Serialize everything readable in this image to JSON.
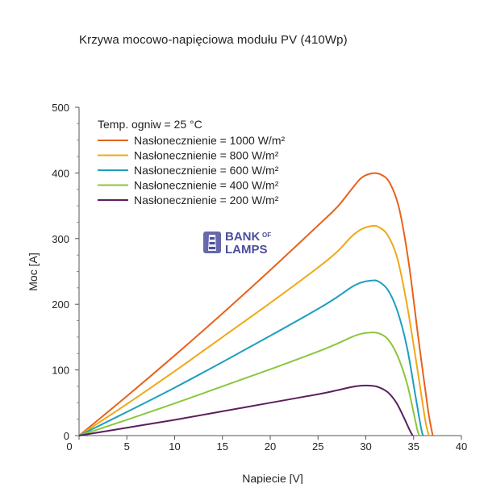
{
  "chart_data": {
    "type": "line",
    "title": "Krzywa mocowo-napięciowa modułu PV (410Wp)",
    "xlabel": "Napiecie  [V]",
    "ylabel": "Moc  [A]",
    "xlim": [
      0,
      40
    ],
    "ylim": [
      0,
      500
    ],
    "x_ticks": [
      0,
      5,
      10,
      15,
      20,
      25,
      30,
      35,
      40
    ],
    "y_ticks": [
      0,
      100,
      200,
      300,
      400,
      500
    ],
    "grid": false,
    "legend_title": "Temp. ogniw = 25 °C",
    "legend_position": "top-left",
    "series": [
      {
        "name": "Nasłonecznienie = 1000 W/m²",
        "color": "#E8621B",
        "points": [
          [
            0,
            0
          ],
          [
            5,
            60
          ],
          [
            10,
            122
          ],
          [
            15,
            186
          ],
          [
            20,
            252
          ],
          [
            25,
            320
          ],
          [
            27,
            348
          ],
          [
            28.5,
            375
          ],
          [
            29.5,
            392
          ],
          [
            30.5,
            399
          ],
          [
            31.5,
            398
          ],
          [
            32.5,
            385
          ],
          [
            33.5,
            345
          ],
          [
            34.5,
            262
          ],
          [
            35.5,
            148
          ],
          [
            36.5,
            40
          ],
          [
            37,
            0
          ]
        ]
      },
      {
        "name": "Nasłonecznienie = 800 W/m²",
        "color": "#F0A819",
        "points": [
          [
            0,
            0
          ],
          [
            5,
            48
          ],
          [
            10,
            98
          ],
          [
            15,
            150
          ],
          [
            20,
            202
          ],
          [
            25,
            256
          ],
          [
            27,
            280
          ],
          [
            28.5,
            303
          ],
          [
            29.5,
            314
          ],
          [
            30.5,
            319
          ],
          [
            31.3,
            318
          ],
          [
            32.3,
            305
          ],
          [
            33.3,
            270
          ],
          [
            34.3,
            200
          ],
          [
            35.3,
            110
          ],
          [
            36.2,
            25
          ],
          [
            36.6,
            0
          ]
        ]
      },
      {
        "name": "Nasłonecznienie = 600 W/m²",
        "color": "#1E9FBF",
        "points": [
          [
            0,
            0
          ],
          [
            5,
            36
          ],
          [
            10,
            73
          ],
          [
            15,
            112
          ],
          [
            20,
            152
          ],
          [
            25,
            193
          ],
          [
            27,
            211
          ],
          [
            28.5,
            226
          ],
          [
            29.5,
            233
          ],
          [
            30.5,
            236
          ],
          [
            31.3,
            235
          ],
          [
            32.3,
            222
          ],
          [
            33.3,
            190
          ],
          [
            34.3,
            135
          ],
          [
            35.2,
            60
          ],
          [
            35.8,
            10
          ],
          [
            36,
            0
          ]
        ]
      },
      {
        "name": "Nasłonecznienie = 400 W/m²",
        "color": "#8CC63E",
        "points": [
          [
            0,
            0
          ],
          [
            5,
            24
          ],
          [
            10,
            49
          ],
          [
            15,
            75
          ],
          [
            20,
            101
          ],
          [
            25,
            128
          ],
          [
            27,
            140
          ],
          [
            28.5,
            150
          ],
          [
            29.5,
            155
          ],
          [
            30.5,
            157
          ],
          [
            31.3,
            156
          ],
          [
            32.3,
            147
          ],
          [
            33.3,
            122
          ],
          [
            34.3,
            80
          ],
          [
            35,
            35
          ],
          [
            35.4,
            8
          ],
          [
            35.6,
            0
          ]
        ]
      },
      {
        "name": "Nasłonecznienie = 200 W/m²",
        "color": "#5C1F5E",
        "points": [
          [
            0,
            0
          ],
          [
            5,
            12
          ],
          [
            10,
            24
          ],
          [
            15,
            37
          ],
          [
            20,
            50
          ],
          [
            25,
            63
          ],
          [
            27,
            69
          ],
          [
            28.5,
            74
          ],
          [
            29.5,
            76
          ],
          [
            30.5,
            76
          ],
          [
            31.3,
            74
          ],
          [
            32.3,
            66
          ],
          [
            33.2,
            50
          ],
          [
            34,
            27
          ],
          [
            34.6,
            8
          ],
          [
            34.9,
            0
          ]
        ]
      }
    ]
  },
  "watermark": {
    "line1": "BANK",
    "line1_small": "OF",
    "line2": "LAMPS",
    "color": "#4B4E9C",
    "icon": "lighthouse-icon"
  }
}
